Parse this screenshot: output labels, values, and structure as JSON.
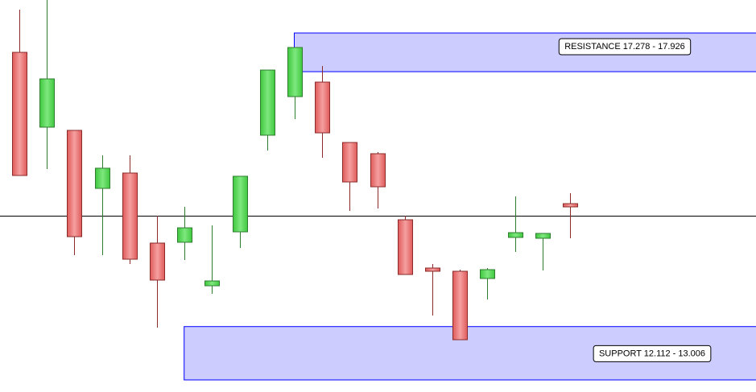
{
  "chart_data": {
    "type": "candlestick",
    "title": "",
    "ylim": [
      11.9,
      18.6
    ],
    "grid": false,
    "colors": {
      "up": "#5ad65a",
      "down": "#ec7070",
      "up_border": "#2e7d2e",
      "down_border": "#8a2a2a",
      "zone_fill": "#ccccff",
      "zone_border": "#0000ff",
      "line": "#000000"
    },
    "candles": [
      {
        "o": 17.602,
        "h": 18.317,
        "l": 15.538,
        "c": 15.538
      },
      {
        "o": 16.348,
        "h": 18.479,
        "l": 15.646,
        "c": 17.157
      },
      {
        "o": 16.294,
        "h": 16.294,
        "l": 14.203,
        "c": 14.513
      },
      {
        "o": 15.322,
        "h": 15.876,
        "l": 14.203,
        "c": 15.66
      },
      {
        "o": 15.579,
        "h": 15.876,
        "l": 14.054,
        "c": 14.135
      },
      {
        "o": 14.405,
        "h": 14.864,
        "l": 12.989,
        "c": 13.785
      },
      {
        "o": 14.419,
        "h": 15.012,
        "l": 14.122,
        "c": 14.661
      },
      {
        "o": 13.69,
        "h": 14.702,
        "l": 13.555,
        "c": 13.771
      },
      {
        "o": 14.594,
        "h": 15.525,
        "l": 14.324,
        "c": 15.525
      },
      {
        "o": 16.213,
        "h": 17.305,
        "l": 15.956,
        "c": 17.305
      },
      {
        "o": 16.86,
        "h": 17.683,
        "l": 16.483,
        "c": 17.683
      },
      {
        "o": 17.103,
        "h": 17.373,
        "l": 15.835,
        "c": 16.253
      },
      {
        "o": 16.091,
        "h": 16.091,
        "l": 14.945,
        "c": 15.43
      },
      {
        "o": 15.903,
        "h": 15.93,
        "l": 14.985,
        "c": 15.349
      },
      {
        "o": 14.796,
        "h": 14.864,
        "l": 13.879,
        "c": 13.879
      },
      {
        "o": 13.987,
        "h": 14.054,
        "l": 13.191,
        "c": 13.933
      },
      {
        "o": 13.933,
        "h": 13.96,
        "l": 12.786,
        "c": 12.786
      },
      {
        "o": 13.812,
        "h": 13.987,
        "l": 13.461,
        "c": 13.96
      },
      {
        "o": 14.5,
        "h": 15.188,
        "l": 14.257,
        "c": 14.58
      },
      {
        "o": 14.486,
        "h": 14.567,
        "l": 13.946,
        "c": 14.567
      },
      {
        "o": 15.066,
        "h": 15.242,
        "l": 14.486,
        "c": 15.012
      }
    ],
    "horizontal_line": 14.864,
    "zones": [
      {
        "name": "resistance",
        "low": 17.278,
        "high": 17.926,
        "start_candle": 10,
        "label": "RESISTANCE 17.278 - 17.926"
      },
      {
        "name": "support",
        "low": 12.112,
        "high": 13.006,
        "start_candle": 6,
        "label": "SUPPORT 12.112 - 13.006"
      }
    ]
  }
}
